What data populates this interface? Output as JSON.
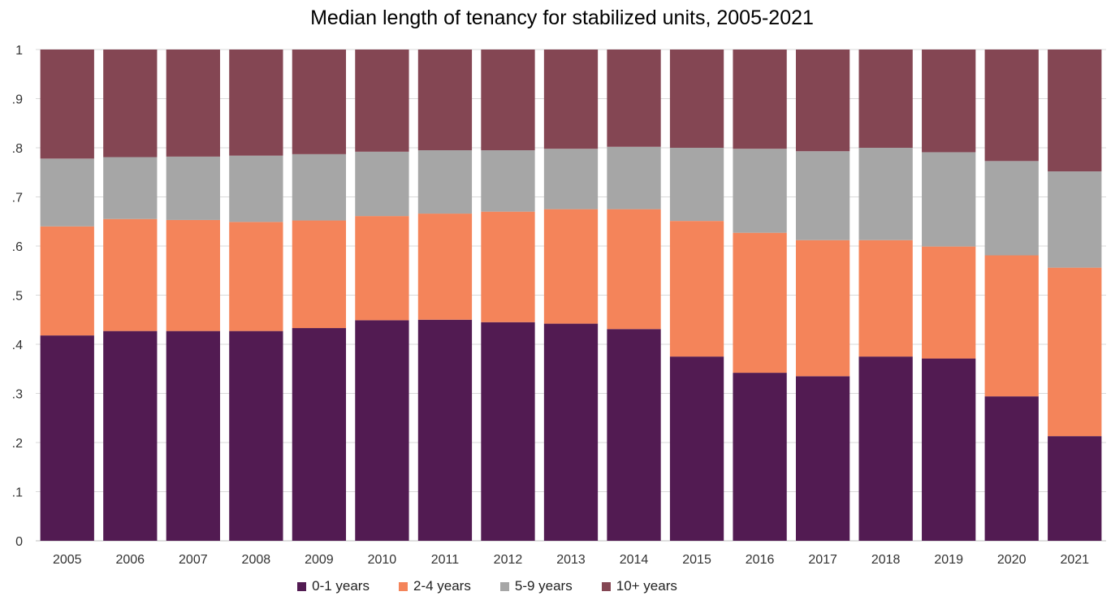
{
  "chart_data": {
    "type": "bar",
    "stacked": true,
    "title": "Median length of tenancy for stabilized units, 2005-2021",
    "xlabel": "",
    "ylabel": "",
    "ylim": [
      0,
      1
    ],
    "yticks": [
      "0",
      ".1",
      ".2",
      ".3",
      ".4",
      ".5",
      ".6",
      ".7",
      ".8",
      ".9",
      "1"
    ],
    "grid": true,
    "legend_position": "bottom",
    "categories": [
      "2005",
      "2006",
      "2007",
      "2008",
      "2009",
      "2010",
      "2011",
      "2012",
      "2013",
      "2014",
      "2015",
      "2016",
      "2017",
      "2018",
      "2019",
      "2020",
      "2021"
    ],
    "series": [
      {
        "name": "0-1 years",
        "color": "#521b52",
        "values": [
          0.418,
          0.427,
          0.427,
          0.427,
          0.433,
          0.449,
          0.45,
          0.445,
          0.442,
          0.431,
          0.375,
          0.342,
          0.335,
          0.375,
          0.371,
          0.294,
          0.213
        ]
      },
      {
        "name": "2-4 years",
        "color": "#f4845a",
        "values": [
          0.222,
          0.228,
          0.226,
          0.222,
          0.219,
          0.212,
          0.216,
          0.225,
          0.233,
          0.244,
          0.276,
          0.285,
          0.277,
          0.237,
          0.228,
          0.287,
          0.343
        ]
      },
      {
        "name": "5-9 years",
        "color": "#a6a6a6",
        "values": [
          0.138,
          0.126,
          0.129,
          0.135,
          0.135,
          0.131,
          0.129,
          0.125,
          0.123,
          0.127,
          0.149,
          0.171,
          0.181,
          0.188,
          0.192,
          0.192,
          0.196
        ]
      },
      {
        "name": "10+ years",
        "color": "#844653",
        "values": [
          0.222,
          0.219,
          0.218,
          0.216,
          0.213,
          0.208,
          0.205,
          0.205,
          0.202,
          0.198,
          0.2,
          0.202,
          0.207,
          0.2,
          0.209,
          0.227,
          0.248
        ]
      }
    ]
  }
}
